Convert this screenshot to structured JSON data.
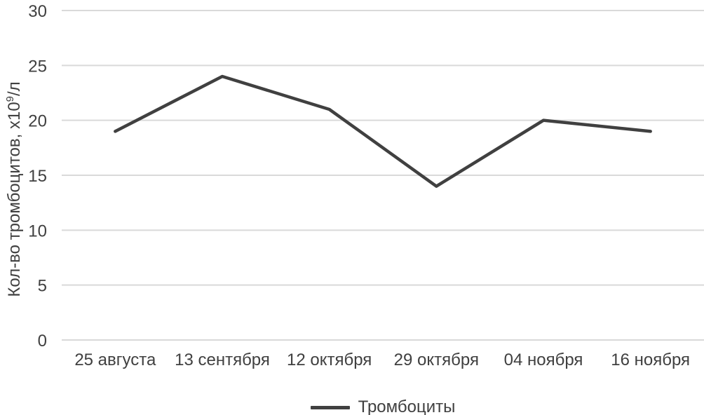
{
  "chart_data": {
    "type": "line",
    "title": "",
    "categories": [
      "25 августа",
      "13 сентября",
      "12 октября",
      "29 октября",
      "04 ноября",
      "16 ноября"
    ],
    "series": [
      {
        "name": "Тромбоциты",
        "values": [
          19,
          24,
          21,
          14,
          20,
          19
        ],
        "color": "#404040"
      }
    ],
    "xlabel": "",
    "ylabel": "Кол-во тромбоцитов, х10⁹/л",
    "ylabel_parts": {
      "main": "Кол-во тромбоцитов, х10",
      "sup": "9",
      "suffix": "/л"
    },
    "ylim": [
      0,
      30
    ],
    "yticks": [
      "0",
      "5",
      "10",
      "15",
      "20",
      "25",
      "30"
    ],
    "grid": true,
    "legend_position": "bottom",
    "colors": {
      "gridline": "#d9d9d9",
      "text": "#404040",
      "background": "#ffffff"
    }
  }
}
